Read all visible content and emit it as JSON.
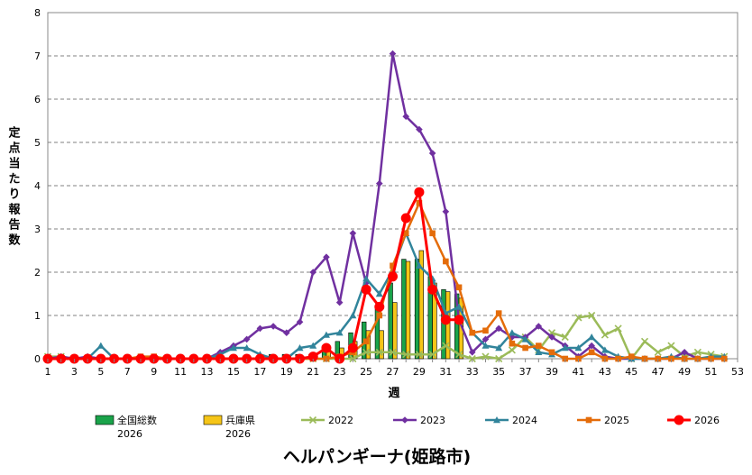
{
  "chart_data": {
    "type": "bar+line",
    "title": "ヘルパンギーナ(姫路市)",
    "xlabel": "週",
    "ylabel": "定点当たり報告数",
    "ylim": [
      0,
      8
    ],
    "xlim": [
      1,
      53
    ],
    "y_ticks": [
      "0",
      "1",
      "2",
      "3",
      "4",
      "5",
      "6",
      "7",
      "8"
    ],
    "x_ticks": [
      "1",
      "3",
      "5",
      "7",
      "9",
      "11",
      "13",
      "15",
      "17",
      "19",
      "21",
      "23",
      "25",
      "27",
      "29",
      "31",
      "33",
      "35",
      "37",
      "39",
      "41",
      "43",
      "45",
      "47",
      "49",
      "51",
      "53"
    ],
    "grid": "horizontal dashed",
    "legend_position": "bottom",
    "bar_series": [
      {
        "name": "全国総数",
        "name_line2": "2026",
        "color": "#1aa34a",
        "values": [
          0,
          0,
          0,
          0,
          0,
          0,
          0,
          0,
          0,
          0,
          0,
          0,
          0,
          0,
          0,
          0,
          0,
          0.1,
          0.1,
          0.1,
          0.1,
          0.3,
          0.4,
          0.6,
          0.85,
          1.15,
          1.75,
          2.3,
          2.3,
          1.9,
          1.6,
          1.5
        ]
      },
      {
        "name": "兵庫県",
        "name_line2": "2026",
        "color": "#f5c518",
        "values": [
          0,
          0,
          0,
          0,
          0,
          0,
          0,
          0,
          0,
          0,
          0,
          0,
          0,
          0,
          0,
          0,
          0,
          0.05,
          0.05,
          0.05,
          0.05,
          0.2,
          0.25,
          0.4,
          0.65,
          0.65,
          1.3,
          2.25,
          2.5,
          1.75,
          1.55,
          1.4
        ]
      }
    ],
    "series": [
      {
        "name": "2022",
        "color": "#9bbb59",
        "marker": "x",
        "values": [
          0.05,
          0.05,
          0,
          0,
          0,
          0,
          0,
          0,
          0,
          0,
          0,
          0,
          0,
          0,
          0,
          0,
          0,
          0,
          0,
          0,
          0,
          0,
          0,
          0,
          0.15,
          0.15,
          0.15,
          0.1,
          0.1,
          0.1,
          0.3,
          0.1,
          0,
          0.05,
          0,
          0.2,
          0.5,
          0.2,
          0.6,
          0.5,
          0.95,
          1.0,
          0.55,
          0.7,
          0,
          0.4,
          0.15,
          0.3,
          0.05,
          0.15,
          0.1,
          0.05
        ]
      },
      {
        "name": "2023",
        "color": "#7030a0",
        "marker": "diamond",
        "values": [
          0,
          0.05,
          0,
          0.05,
          0,
          0,
          0,
          0,
          0,
          0,
          0,
          0,
          0,
          0.15,
          0.3,
          0.45,
          0.7,
          0.75,
          0.6,
          0.85,
          2.0,
          2.35,
          1.3,
          2.9,
          1.75,
          4.05,
          7.05,
          5.6,
          5.3,
          4.75,
          3.4,
          0.9,
          0.15,
          0.45,
          0.7,
          0.5,
          0.5,
          0.75,
          0.5,
          0.3,
          0.05,
          0.3,
          0.05,
          0,
          0,
          0,
          0,
          0,
          0.15,
          0,
          0,
          0
        ]
      },
      {
        "name": "2024",
        "color": "#31849b",
        "marker": "triangle",
        "values": [
          0,
          0,
          0,
          0,
          0.3,
          0,
          0,
          0,
          0,
          0,
          0,
          0,
          0,
          0.1,
          0.25,
          0.25,
          0.1,
          0,
          0,
          0.25,
          0.3,
          0.55,
          0.6,
          1.0,
          1.85,
          1.5,
          2.05,
          2.9,
          2.15,
          1.85,
          1.05,
          1.2,
          0.6,
          0.3,
          0.25,
          0.6,
          0.45,
          0.15,
          0.1,
          0.25,
          0.25,
          0.5,
          0.2,
          0.05,
          0,
          0,
          0,
          0.05,
          0,
          0,
          0.05,
          0.05
        ]
      },
      {
        "name": "2025",
        "color": "#e46c0a",
        "marker": "square",
        "values": [
          0,
          0,
          0,
          0,
          0,
          0,
          0,
          0.05,
          0.05,
          0,
          0,
          0,
          0,
          0,
          0,
          0,
          0,
          0,
          0,
          0,
          0,
          0,
          0.05,
          0.15,
          0.4,
          1.0,
          2.15,
          2.9,
          3.6,
          2.9,
          2.25,
          1.65,
          0.6,
          0.65,
          1.05,
          0.35,
          0.25,
          0.3,
          0.15,
          0,
          0,
          0.15,
          0,
          0,
          0.05,
          0,
          0,
          0,
          0,
          0,
          0,
          0
        ]
      },
      {
        "name": "2026",
        "color": "#ff0000",
        "marker": "circle",
        "values": [
          0,
          0,
          0,
          0,
          0,
          0,
          0,
          0,
          0,
          0,
          0,
          0,
          0,
          0,
          0,
          0,
          0,
          0,
          0,
          0,
          0.05,
          0.25,
          0,
          0.25,
          1.6,
          1.2,
          1.9,
          3.25,
          3.85,
          1.6,
          0.9,
          0.9
        ]
      }
    ]
  }
}
